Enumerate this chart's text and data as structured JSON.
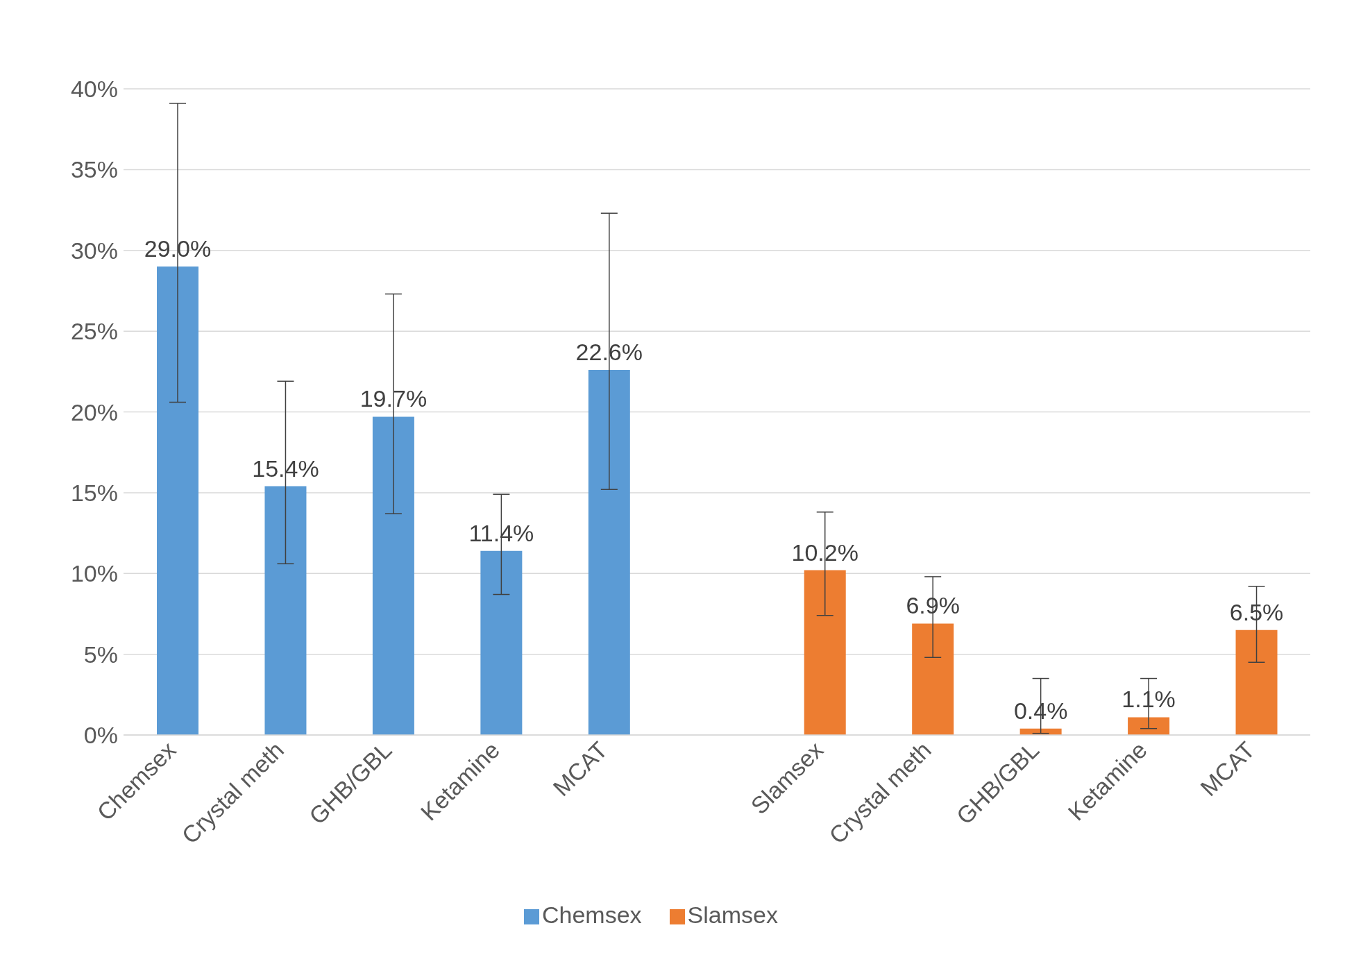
{
  "chart_data": {
    "type": "bar",
    "categories": [
      "Chemsex",
      "Crystal meth",
      "GHB/GBL",
      "Ketamine",
      "MCAT",
      null,
      "Slamsex",
      "Crystal meth",
      "GHB/GBL",
      "Ketamine",
      "MCAT"
    ],
    "series": [
      {
        "name": "Chemsex",
        "color": "#5b9bd5",
        "values": [
          29.0,
          15.4,
          19.7,
          11.4,
          22.6,
          null,
          null,
          null,
          null,
          null,
          null
        ],
        "value_labels": [
          "29.0%",
          "15.4%",
          "19.7%",
          "11.4%",
          "22.6%",
          null,
          null,
          null,
          null,
          null,
          null
        ],
        "errors": [
          [
            20.6,
            39.1
          ],
          [
            10.6,
            21.9
          ],
          [
            13.7,
            27.3
          ],
          [
            8.7,
            14.9
          ],
          [
            15.2,
            32.3
          ],
          null,
          null,
          null,
          null,
          null,
          null
        ]
      },
      {
        "name": "Slamsex",
        "color": "#ed7d31",
        "values": [
          null,
          null,
          null,
          null,
          null,
          null,
          10.2,
          6.9,
          0.4,
          1.1,
          6.5
        ],
        "value_labels": [
          null,
          null,
          null,
          null,
          null,
          null,
          "10.2%",
          "6.9%",
          "0.4%",
          "1.1%",
          "6.5%"
        ],
        "errors": [
          null,
          null,
          null,
          null,
          null,
          null,
          [
            7.4,
            13.8
          ],
          [
            4.8,
            9.8
          ],
          [
            0.1,
            3.5
          ],
          [
            0.4,
            3.5
          ],
          [
            4.5,
            9.2
          ]
        ]
      }
    ],
    "ylim": [
      0,
      40
    ],
    "yticks": [
      {
        "value": 0,
        "label": "0%"
      },
      {
        "value": 5,
        "label": "5%"
      },
      {
        "value": 10,
        "label": "10%"
      },
      {
        "value": 15,
        "label": "15%"
      },
      {
        "value": 20,
        "label": "20%"
      },
      {
        "value": 25,
        "label": "25%"
      },
      {
        "value": 30,
        "label": "30%"
      },
      {
        "value": 35,
        "label": "35%"
      },
      {
        "value": 40,
        "label": "40%"
      }
    ],
    "grid": "y",
    "legend": "bottom"
  }
}
